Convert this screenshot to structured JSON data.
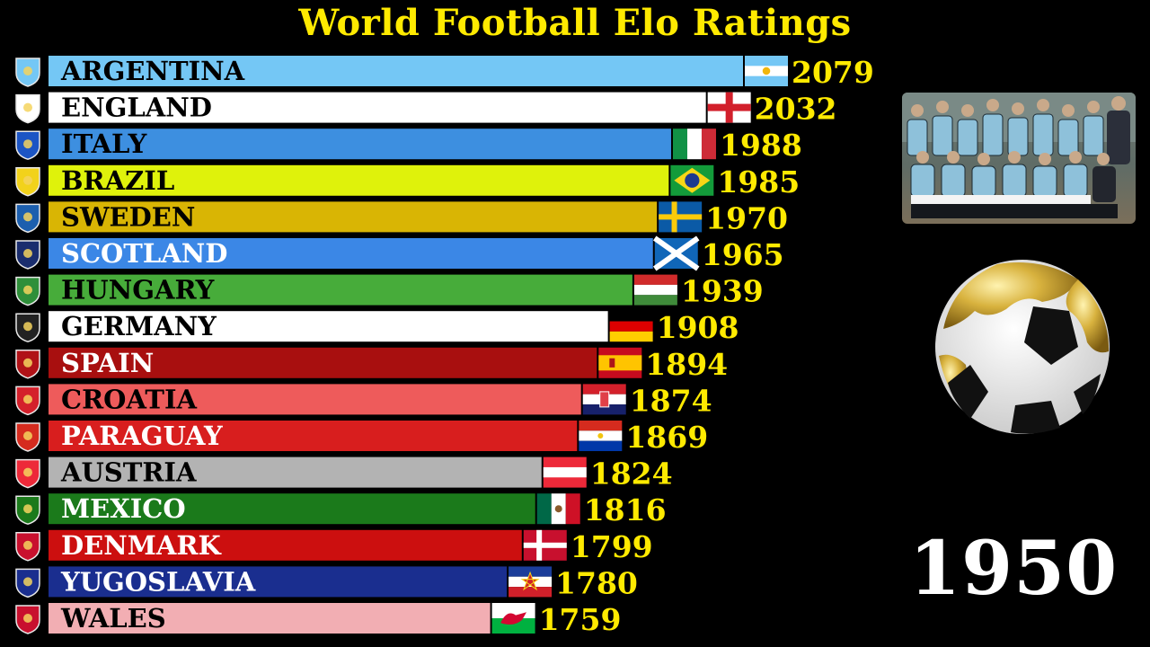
{
  "title": "World Football Elo Ratings",
  "year": "1950",
  "colors": {
    "title": "#ffea00",
    "values": "#ffea00",
    "background": "#000000"
  },
  "media": {
    "photo_icon": "team-photo",
    "ball_icon": "golden-football"
  },
  "chart_data": {
    "type": "bar",
    "orientation": "horizontal",
    "title": "World Football Elo Ratings",
    "xlabel": "",
    "ylabel": "",
    "grid": false,
    "categories": [
      "ARGENTINA",
      "ENGLAND",
      "ITALY",
      "BRAZIL",
      "SWEDEN",
      "SCOTLAND",
      "HUNGARY",
      "GERMANY",
      "SPAIN",
      "CROATIA",
      "PARAGUAY",
      "AUSTRIA",
      "MEXICO",
      "DENMARK",
      "YUGOSLAVIA",
      "WALES"
    ],
    "values": [
      2079,
      2032,
      1988,
      1985,
      1970,
      1965,
      1939,
      1908,
      1894,
      1874,
      1869,
      1824,
      1816,
      1799,
      1780,
      1759
    ],
    "value_labels": [
      "2079",
      "2032",
      "1988",
      "1985",
      "1970",
      "1965",
      "1939",
      "1908",
      "1894",
      "1874",
      "1869",
      "1824",
      "1816",
      "1799",
      "1780",
      "1759"
    ],
    "bar_colors": [
      "#74c7f5",
      "#ffffff",
      "#3d8fe0",
      "#dff20b",
      "#d9b504",
      "#3b87e6",
      "#47ac3a",
      "#ffffff",
      "#a80f0f",
      "#ee5b5b",
      "#d81e1e",
      "#b3b3b3",
      "#1b7a1b",
      "#cc0f0f",
      "#1a2e8f",
      "#f2aeb3"
    ],
    "label_colors": [
      "#000000",
      "#000000",
      "#000000",
      "#000000",
      "#000000",
      "#ffffff",
      "#000000",
      "#000000",
      "#ffffff",
      "#000000",
      "#ffffff",
      "#000000",
      "#ffffff",
      "#ffffff",
      "#ffffff",
      "#000000"
    ],
    "flag_icons": [
      "argentina-flag",
      "england-flag",
      "italy-flag",
      "brazil-flag",
      "sweden-flag",
      "scotland-flag",
      "hungary-flag",
      "germany-flag",
      "spain-flag",
      "croatia-flag",
      "paraguay-flag",
      "austria-flag",
      "mexico-flag",
      "denmark-flag",
      "yugoslavia-flag",
      "wales-flag"
    ],
    "crest_icons": [
      "argentina-crest",
      "england-crest",
      "italy-crest",
      "brazil-crest",
      "sweden-crest",
      "scotland-crest",
      "hungary-crest",
      "germany-crest",
      "spain-crest",
      "croatia-crest",
      "paraguay-crest",
      "austria-crest",
      "mexico-crest",
      "denmark-crest",
      "yugoslavia-crest",
      "wales-crest"
    ]
  }
}
